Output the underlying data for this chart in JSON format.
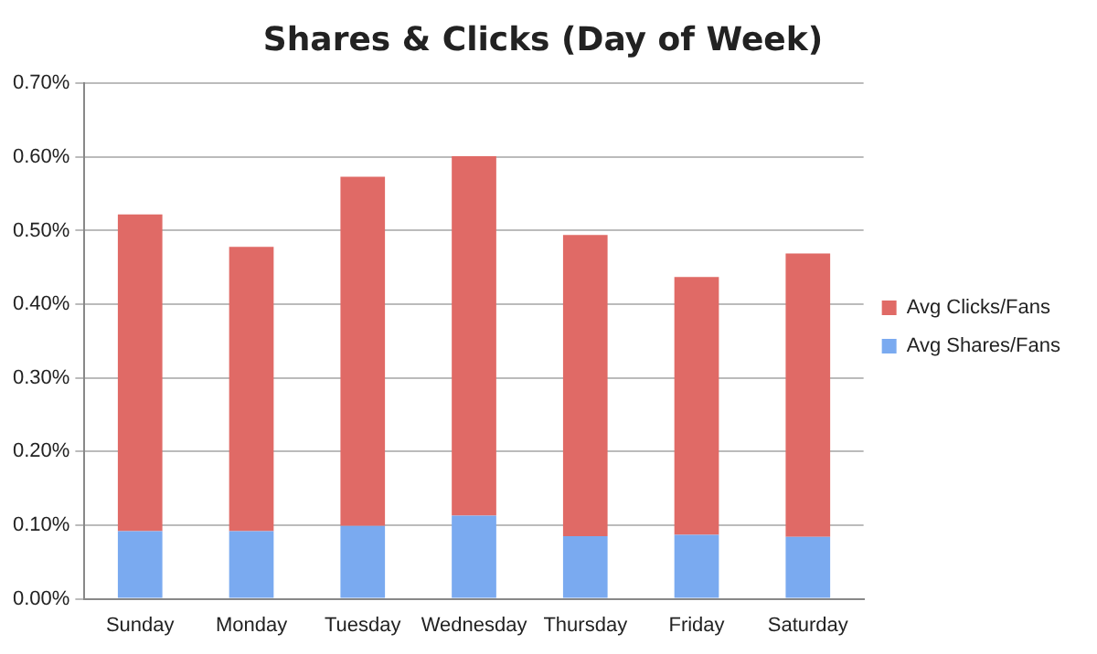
{
  "chart_data": {
    "type": "bar",
    "title": "Shares & Clicks (Day of Week)",
    "stacked": true,
    "categories": [
      "Sunday",
      "Monday",
      "Tuesday",
      "Wednesday",
      "Thursday",
      "Friday",
      "Saturday"
    ],
    "series": [
      {
        "name": "Avg Shares/Fans",
        "color": "#7aaaf0",
        "values": [
          0.092,
          0.092,
          0.099,
          0.113,
          0.085,
          0.087,
          0.084
        ]
      },
      {
        "name": "Avg Clicks/Fans",
        "color": "#e06a66",
        "values": [
          0.43,
          0.386,
          0.474,
          0.488,
          0.409,
          0.35,
          0.385
        ]
      }
    ],
    "ylim": [
      0,
      0.7
    ],
    "yticks": [
      {
        "value": 0,
        "label": "0.00%"
      },
      {
        "value": 0.1,
        "label": "0.10%"
      },
      {
        "value": 0.2,
        "label": "0.20%"
      },
      {
        "value": 0.3,
        "label": "0.30%"
      },
      {
        "value": 0.4,
        "label": "0.40%"
      },
      {
        "value": 0.5,
        "label": "0.50%"
      },
      {
        "value": 0.6,
        "label": "0.60%"
      },
      {
        "value": 0.7,
        "label": "0.70%"
      }
    ],
    "grid": "y",
    "legend": "right"
  }
}
